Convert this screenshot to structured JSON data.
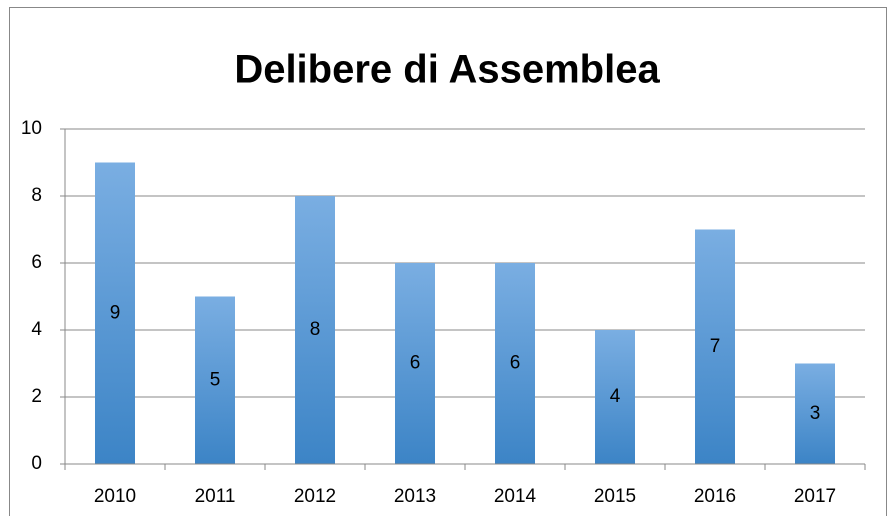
{
  "chart_data": {
    "type": "bar",
    "title": "Delibere di Assemblea",
    "categories": [
      "2010",
      "2011",
      "2012",
      "2013",
      "2014",
      "2015",
      "2016",
      "2017"
    ],
    "values": [
      9,
      5,
      8,
      6,
      6,
      4,
      7,
      3
    ],
    "color": "#5b9bd5",
    "ylim": [
      0,
      10
    ],
    "yticks": [
      0,
      2,
      4,
      6,
      8,
      10
    ],
    "grid": true,
    "data_labels": true
  }
}
